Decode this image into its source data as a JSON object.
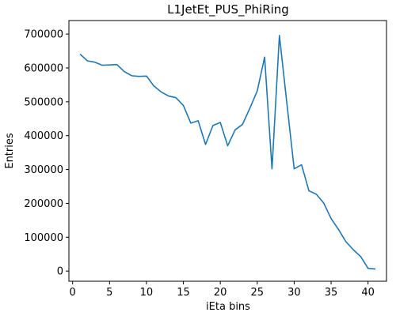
{
  "chart_data": {
    "type": "line",
    "title": "L1JetEt_PUS_PhiRing",
    "xlabel": "iEta bins",
    "ylabel": "Entries",
    "xlim": [
      -0.5,
      42.5
    ],
    "ylim": [
      -30000,
      740000
    ],
    "xticks": [
      0,
      5,
      10,
      15,
      20,
      25,
      30,
      35,
      40
    ],
    "yticks": [
      0,
      100000,
      200000,
      300000,
      400000,
      500000,
      600000,
      700000
    ],
    "grid": false,
    "legend": "none",
    "series": [
      {
        "color": "#1f77b4",
        "x": [
          1,
          2,
          3,
          4,
          5,
          6,
          7,
          8,
          9,
          10,
          11,
          12,
          13,
          14,
          15,
          16,
          17,
          18,
          19,
          20,
          21,
          22,
          23,
          24,
          25,
          26,
          27,
          28,
          29,
          30,
          31,
          32,
          33,
          34,
          35,
          36,
          37,
          38,
          39,
          40,
          41
        ],
        "y": [
          641000,
          621000,
          617000,
          608000,
          609000,
          610000,
          589000,
          577000,
          575000,
          576000,
          547000,
          529000,
          517000,
          512000,
          489000,
          437000,
          444000,
          374000,
          430000,
          439000,
          370000,
          417000,
          433000,
          481000,
          532000,
          632000,
          302000,
          696000,
          498000,
          302000,
          314000,
          237000,
          227000,
          201000,
          155000,
          123000,
          87000,
          63000,
          43000,
          8000,
          6000
        ]
      }
    ]
  }
}
